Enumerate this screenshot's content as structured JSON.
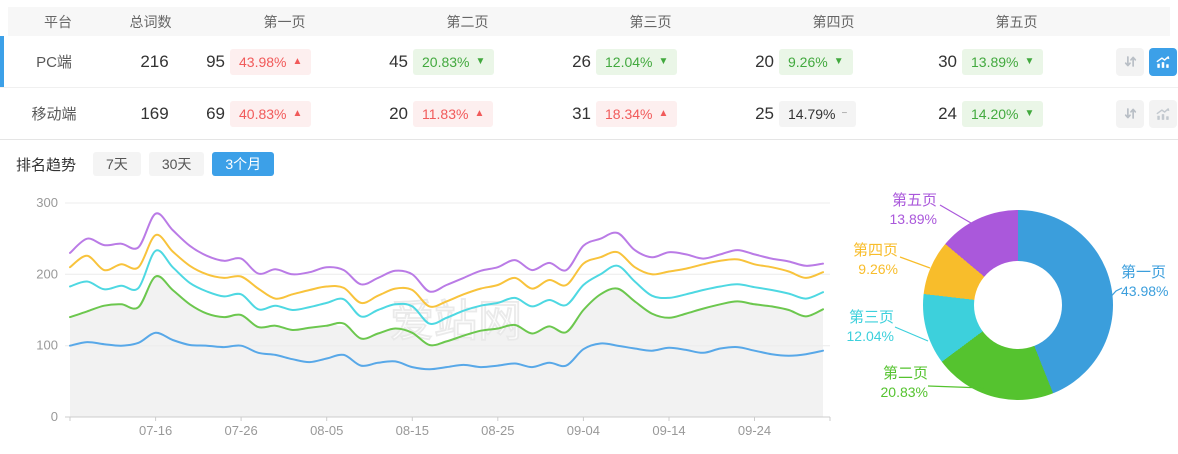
{
  "table": {
    "columns": [
      "平台",
      "总词数",
      "第一页",
      "第二页",
      "第三页",
      "第四页",
      "第五页"
    ],
    "rows": [
      {
        "platform": "PC端",
        "total": "216",
        "active": true,
        "pages": [
          {
            "count": "95",
            "pct": "43.98%",
            "dir": "up",
            "tone": "red"
          },
          {
            "count": "45",
            "pct": "20.83%",
            "dir": "down",
            "tone": "green"
          },
          {
            "count": "26",
            "pct": "12.04%",
            "dir": "down",
            "tone": "green"
          },
          {
            "count": "20",
            "pct": "9.26%",
            "dir": "down",
            "tone": "green"
          },
          {
            "count": "30",
            "pct": "13.89%",
            "dir": "down",
            "tone": "green"
          }
        ]
      },
      {
        "platform": "移动端",
        "total": "169",
        "active": false,
        "pages": [
          {
            "count": "69",
            "pct": "40.83%",
            "dir": "up",
            "tone": "red"
          },
          {
            "count": "20",
            "pct": "11.83%",
            "dir": "up",
            "tone": "red"
          },
          {
            "count": "31",
            "pct": "18.34%",
            "dir": "up",
            "tone": "red"
          },
          {
            "count": "25",
            "pct": "14.79%",
            "dir": "flat",
            "tone": "gray"
          },
          {
            "count": "24",
            "pct": "14.20%",
            "dir": "down",
            "tone": "green"
          }
        ]
      }
    ]
  },
  "trend": {
    "title": "排名趋势",
    "tabs": [
      {
        "label": "7天",
        "active": false
      },
      {
        "label": "30天",
        "active": false
      },
      {
        "label": "3个月",
        "active": true
      }
    ]
  },
  "watermark": "爱站网",
  "icons": {
    "up": "▲",
    "down": "▼",
    "flat": "−",
    "sort": "sort-arrows-icon",
    "trend": "trend-chart-icon"
  },
  "colors": {
    "accent": "#3ca0e8",
    "badge_red_text": "#f15a5a",
    "badge_red_bg": "#fdefef",
    "badge_green_text": "#42a93e",
    "badge_green_bg": "#eaf6e7",
    "badge_gray_bg": "#f4f4f4",
    "grid": "#ececec",
    "axis": "#cccccc",
    "axis_text": "#999999",
    "area_fill": "#f2f2f2"
  },
  "chart_data": [
    {
      "type": "line",
      "title": "排名趋势 (3个月)",
      "x_start": "07-06",
      "x_step_days": 2,
      "x_ticks": [
        "07-16",
        "07-26",
        "08-05",
        "08-15",
        "08-25",
        "09-04",
        "09-14",
        "09-24"
      ],
      "tick_indices": [
        5,
        10,
        15,
        20,
        25,
        30,
        35,
        40
      ],
      "y_ticks": [
        0,
        100,
        200,
        300
      ],
      "ylim": [
        0,
        300
      ],
      "grid": true,
      "legend": "none",
      "stacked_visual": true,
      "series": [
        {
          "name": "第一页",
          "color": "#58a8e8",
          "values": [
            100,
            105,
            102,
            100,
            104,
            118,
            108,
            101,
            100,
            98,
            100,
            90,
            87,
            81,
            77,
            82,
            87,
            72,
            76,
            78,
            70,
            67,
            70,
            73,
            70,
            72,
            75,
            70,
            76,
            72,
            95,
            103,
            100,
            96,
            93,
            97,
            94,
            90,
            96,
            98,
            93,
            88,
            86,
            88,
            93
          ]
        },
        {
          "name": "第二页",
          "color": "#6cc74e",
          "area": "#f2f2f2",
          "values": [
            140,
            148,
            156,
            158,
            154,
            197,
            178,
            158,
            145,
            140,
            143,
            126,
            128,
            122,
            125,
            128,
            131,
            110,
            117,
            124,
            118,
            101,
            106,
            114,
            121,
            124,
            129,
            117,
            127,
            119,
            150,
            172,
            180,
            162,
            145,
            139,
            145,
            152,
            158,
            162,
            158,
            155,
            150,
            141,
            151
          ]
        },
        {
          "name": "第三页",
          "color": "#4ed8e2",
          "values": [
            183,
            190,
            179,
            184,
            181,
            233,
            210,
            188,
            176,
            169,
            172,
            151,
            156,
            150,
            154,
            160,
            165,
            141,
            150,
            158,
            155,
            131,
            139,
            149,
            156,
            160,
            167,
            155,
            164,
            157,
            185,
            200,
            212,
            190,
            170,
            167,
            172,
            178,
            183,
            186,
            182,
            178,
            173,
            166,
            175
          ]
        },
        {
          "name": "第四页",
          "color": "#f8c33c",
          "values": [
            210,
            226,
            206,
            214,
            210,
            255,
            232,
            212,
            200,
            195,
            197,
            180,
            166,
            172,
            178,
            183,
            181,
            160,
            170,
            180,
            178,
            155,
            162,
            172,
            180,
            185,
            195,
            180,
            192,
            185,
            215,
            224,
            231,
            210,
            200,
            204,
            208,
            214,
            219,
            221,
            214,
            210,
            204,
            195,
            203
          ]
        },
        {
          "name": "第五页",
          "color": "#ba7be6",
          "values": [
            230,
            250,
            241,
            243,
            238,
            285,
            262,
            240,
            226,
            219,
            222,
            201,
            207,
            200,
            203,
            210,
            206,
            186,
            195,
            205,
            200,
            176,
            185,
            195,
            205,
            210,
            220,
            206,
            216,
            206,
            240,
            250,
            258,
            234,
            224,
            231,
            228,
            222,
            228,
            234,
            228,
            222,
            218,
            212,
            215
          ]
        }
      ]
    },
    {
      "type": "pie",
      "donut": true,
      "start_angle_deg": 0,
      "slices": [
        {
          "label": "第一页",
          "pct_label": "43.98%",
          "value": 43.98,
          "color": "#3b9edc"
        },
        {
          "label": "第二页",
          "pct_label": "20.83%",
          "value": 20.83,
          "color": "#55c32f"
        },
        {
          "label": "第三页",
          "pct_label": "12.04%",
          "value": 12.04,
          "color": "#3dd0dc"
        },
        {
          "label": "第四页",
          "pct_label": "9.26%",
          "value": 9.26,
          "color": "#f8bd2b"
        },
        {
          "label": "第五页",
          "pct_label": "13.89%",
          "value": 13.89,
          "color": "#aa58db"
        }
      ]
    }
  ]
}
